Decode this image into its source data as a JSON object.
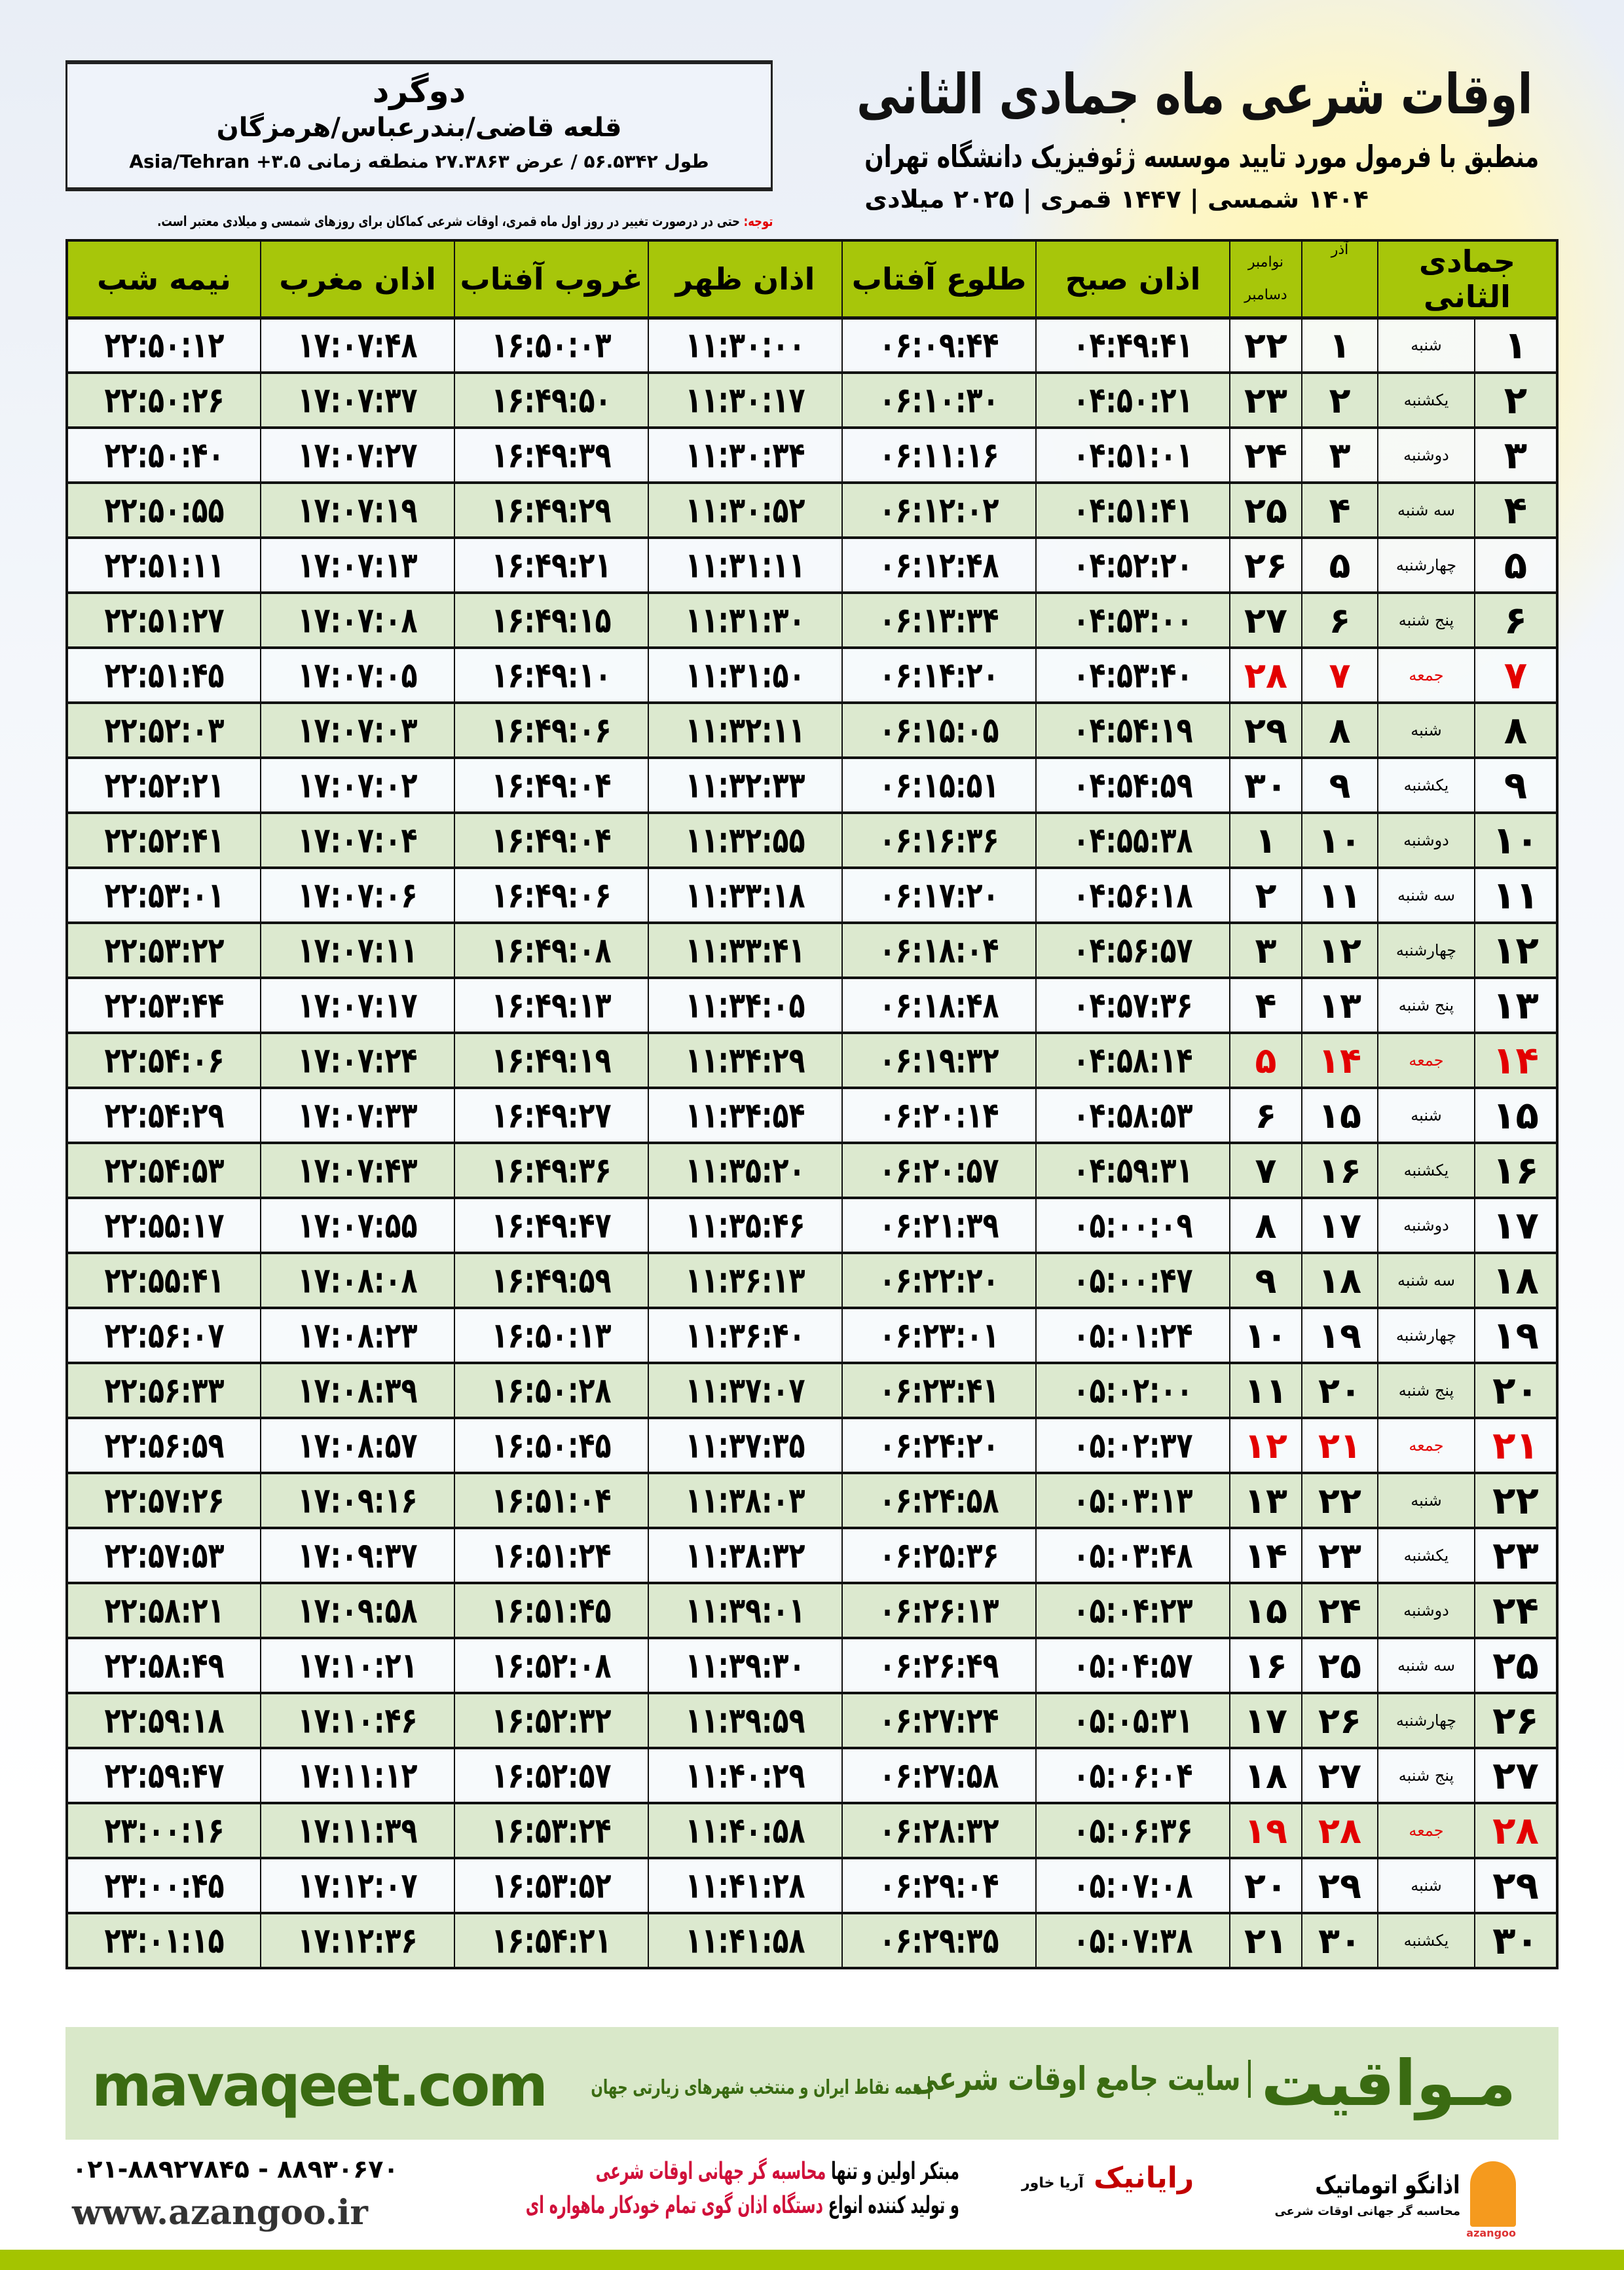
{
  "location": {
    "city": "دوگرد",
    "province": "قلعه قاضی/بندرعباس/هرمزگان",
    "geo": "طول ۵۶.۵۳۴۲ / عرض ۲۷.۳۸۶۳ منطقه زمانی ۳.۵+ Asia/Tehran"
  },
  "header": {
    "title": "اوقات شرعی ماه جمادی الثانی",
    "subtitle": "منطبق با فرمول مورد تایید موسسه ژئوفیزیک دانشگاه تهران",
    "years": "۱۴۰۴ شمسی | ۱۴۴۷ قمری | ۲۰۲۵ میلادی",
    "note_label": "توجه:",
    "note_text": " حتی در درصورت تغییر در روز اول ماه قمری، اوقات شرعی کماکان برای روزهای شمسی و میلادی معتبر است."
  },
  "colors": {
    "header_green": "#a7c60a",
    "row_alt": "#dce9cf",
    "friday_red": "#e30000",
    "banner_bg": "#d9e8c9",
    "brand_green": "#3a6b12"
  },
  "table": {
    "headers": {
      "hijri": "جمادی الثانی",
      "azar": "آذر",
      "greg_top": "نوامبر",
      "greg_bottom": "دسامبر",
      "fajr": "اذان صبح",
      "sunrise": "طلوع آفتاب",
      "dhuhr": "اذان ظهر",
      "sunset": "غروب آفتاب",
      "maghrib": "اذان مغرب",
      "midnight": "نیمه شب"
    },
    "rows": [
      [
        "۱",
        "شنبه",
        "۱",
        "۲۲",
        "۰۴:۴۹:۴۱",
        "۰۶:۰۹:۴۴",
        "۱۱:۳۰:۰۰",
        "۱۶:۵۰:۰۳",
        "۱۷:۰۷:۴۸",
        "۲۲:۵۰:۱۲"
      ],
      [
        "۲",
        "یکشنبه",
        "۲",
        "۲۳",
        "۰۴:۵۰:۲۱",
        "۰۶:۱۰:۳۰",
        "۱۱:۳۰:۱۷",
        "۱۶:۴۹:۵۰",
        "۱۷:۰۷:۳۷",
        "۲۲:۵۰:۲۶"
      ],
      [
        "۳",
        "دوشنبه",
        "۳",
        "۲۴",
        "۰۴:۵۱:۰۱",
        "۰۶:۱۱:۱۶",
        "۱۱:۳۰:۳۴",
        "۱۶:۴۹:۳۹",
        "۱۷:۰۷:۲۷",
        "۲۲:۵۰:۴۰"
      ],
      [
        "۴",
        "سه شنبه",
        "۴",
        "۲۵",
        "۰۴:۵۱:۴۱",
        "۰۶:۱۲:۰۲",
        "۱۱:۳۰:۵۲",
        "۱۶:۴۹:۲۹",
        "۱۷:۰۷:۱۹",
        "۲۲:۵۰:۵۵"
      ],
      [
        "۵",
        "چهارشنبه",
        "۵",
        "۲۶",
        "۰۴:۵۲:۲۰",
        "۰۶:۱۲:۴۸",
        "۱۱:۳۱:۱۱",
        "۱۶:۴۹:۲۱",
        "۱۷:۰۷:۱۳",
        "۲۲:۵۱:۱۱"
      ],
      [
        "۶",
        "پنج شنبه",
        "۶",
        "۲۷",
        "۰۴:۵۳:۰۰",
        "۰۶:۱۳:۳۴",
        "۱۱:۳۱:۳۰",
        "۱۶:۴۹:۱۵",
        "۱۷:۰۷:۰۸",
        "۲۲:۵۱:۲۷"
      ],
      [
        "۷",
        "جمعه",
        "۷",
        "۲۸",
        "۰۴:۵۳:۴۰",
        "۰۶:۱۴:۲۰",
        "۱۱:۳۱:۵۰",
        "۱۶:۴۹:۱۰",
        "۱۷:۰۷:۰۵",
        "۲۲:۵۱:۴۵"
      ],
      [
        "۸",
        "شنبه",
        "۸",
        "۲۹",
        "۰۴:۵۴:۱۹",
        "۰۶:۱۵:۰۵",
        "۱۱:۳۲:۱۱",
        "۱۶:۴۹:۰۶",
        "۱۷:۰۷:۰۳",
        "۲۲:۵۲:۰۳"
      ],
      [
        "۹",
        "یکشنبه",
        "۹",
        "۳۰",
        "۰۴:۵۴:۵۹",
        "۰۶:۱۵:۵۱",
        "۱۱:۳۲:۳۳",
        "۱۶:۴۹:۰۴",
        "۱۷:۰۷:۰۲",
        "۲۲:۵۲:۲۱"
      ],
      [
        "۱۰",
        "دوشنبه",
        "۱۰",
        "۱",
        "۰۴:۵۵:۳۸",
        "۰۶:۱۶:۳۶",
        "۱۱:۳۲:۵۵",
        "۱۶:۴۹:۰۴",
        "۱۷:۰۷:۰۴",
        "۲۲:۵۲:۴۱"
      ],
      [
        "۱۱",
        "سه شنبه",
        "۱۱",
        "۲",
        "۰۴:۵۶:۱۸",
        "۰۶:۱۷:۲۰",
        "۱۱:۳۳:۱۸",
        "۱۶:۴۹:۰۶",
        "۱۷:۰۷:۰۶",
        "۲۲:۵۳:۰۱"
      ],
      [
        "۱۲",
        "چهارشنبه",
        "۱۲",
        "۳",
        "۰۴:۵۶:۵۷",
        "۰۶:۱۸:۰۴",
        "۱۱:۳۳:۴۱",
        "۱۶:۴۹:۰۸",
        "۱۷:۰۷:۱۱",
        "۲۲:۵۳:۲۲"
      ],
      [
        "۱۳",
        "پنج شنبه",
        "۱۳",
        "۴",
        "۰۴:۵۷:۳۶",
        "۰۶:۱۸:۴۸",
        "۱۱:۳۴:۰۵",
        "۱۶:۴۹:۱۳",
        "۱۷:۰۷:۱۷",
        "۲۲:۵۳:۴۴"
      ],
      [
        "۱۴",
        "جمعه",
        "۱۴",
        "۵",
        "۰۴:۵۸:۱۴",
        "۰۶:۱۹:۳۲",
        "۱۱:۳۴:۲۹",
        "۱۶:۴۹:۱۹",
        "۱۷:۰۷:۲۴",
        "۲۲:۵۴:۰۶"
      ],
      [
        "۱۵",
        "شنبه",
        "۱۵",
        "۶",
        "۰۴:۵۸:۵۳",
        "۰۶:۲۰:۱۴",
        "۱۱:۳۴:۵۴",
        "۱۶:۴۹:۲۷",
        "۱۷:۰۷:۳۳",
        "۲۲:۵۴:۲۹"
      ],
      [
        "۱۶",
        "یکشنبه",
        "۱۶",
        "۷",
        "۰۴:۵۹:۳۱",
        "۰۶:۲۰:۵۷",
        "۱۱:۳۵:۲۰",
        "۱۶:۴۹:۳۶",
        "۱۷:۰۷:۴۳",
        "۲۲:۵۴:۵۳"
      ],
      [
        "۱۷",
        "دوشنبه",
        "۱۷",
        "۸",
        "۰۵:۰۰:۰۹",
        "۰۶:۲۱:۳۹",
        "۱۱:۳۵:۴۶",
        "۱۶:۴۹:۴۷",
        "۱۷:۰۷:۵۵",
        "۲۲:۵۵:۱۷"
      ],
      [
        "۱۸",
        "سه شنبه",
        "۱۸",
        "۹",
        "۰۵:۰۰:۴۷",
        "۰۶:۲۲:۲۰",
        "۱۱:۳۶:۱۳",
        "۱۶:۴۹:۵۹",
        "۱۷:۰۸:۰۸",
        "۲۲:۵۵:۴۱"
      ],
      [
        "۱۹",
        "چهارشنبه",
        "۱۹",
        "۱۰",
        "۰۵:۰۱:۲۴",
        "۰۶:۲۳:۰۱",
        "۱۱:۳۶:۴۰",
        "۱۶:۵۰:۱۳",
        "۱۷:۰۸:۲۳",
        "۲۲:۵۶:۰۷"
      ],
      [
        "۲۰",
        "پنج شنبه",
        "۲۰",
        "۱۱",
        "۰۵:۰۲:۰۰",
        "۰۶:۲۳:۴۱",
        "۱۱:۳۷:۰۷",
        "۱۶:۵۰:۲۸",
        "۱۷:۰۸:۳۹",
        "۲۲:۵۶:۳۳"
      ],
      [
        "۲۱",
        "جمعه",
        "۲۱",
        "۱۲",
        "۰۵:۰۲:۳۷",
        "۰۶:۲۴:۲۰",
        "۱۱:۳۷:۳۵",
        "۱۶:۵۰:۴۵",
        "۱۷:۰۸:۵۷",
        "۲۲:۵۶:۵۹"
      ],
      [
        "۲۲",
        "شنبه",
        "۲۲",
        "۱۳",
        "۰۵:۰۳:۱۳",
        "۰۶:۲۴:۵۸",
        "۱۱:۳۸:۰۳",
        "۱۶:۵۱:۰۴",
        "۱۷:۰۹:۱۶",
        "۲۲:۵۷:۲۶"
      ],
      [
        "۲۳",
        "یکشنبه",
        "۲۳",
        "۱۴",
        "۰۵:۰۳:۴۸",
        "۰۶:۲۵:۳۶",
        "۱۱:۳۸:۳۲",
        "۱۶:۵۱:۲۴",
        "۱۷:۰۹:۳۷",
        "۲۲:۵۷:۵۳"
      ],
      [
        "۲۴",
        "دوشنبه",
        "۲۴",
        "۱۵",
        "۰۵:۰۴:۲۳",
        "۰۶:۲۶:۱۳",
        "۱۱:۳۹:۰۱",
        "۱۶:۵۱:۴۵",
        "۱۷:۰۹:۵۸",
        "۲۲:۵۸:۲۱"
      ],
      [
        "۲۵",
        "سه شنبه",
        "۲۵",
        "۱۶",
        "۰۵:۰۴:۵۷",
        "۰۶:۲۶:۴۹",
        "۱۱:۳۹:۳۰",
        "۱۶:۵۲:۰۸",
        "۱۷:۱۰:۲۱",
        "۲۲:۵۸:۴۹"
      ],
      [
        "۲۶",
        "چهارشنبه",
        "۲۶",
        "۱۷",
        "۰۵:۰۵:۳۱",
        "۰۶:۲۷:۲۴",
        "۱۱:۳۹:۵۹",
        "۱۶:۵۲:۳۲",
        "۱۷:۱۰:۴۶",
        "۲۲:۵۹:۱۸"
      ],
      [
        "۲۷",
        "پنج شنبه",
        "۲۷",
        "۱۸",
        "۰۵:۰۶:۰۴",
        "۰۶:۲۷:۵۸",
        "۱۱:۴۰:۲۹",
        "۱۶:۵۲:۵۷",
        "۱۷:۱۱:۱۲",
        "۲۲:۵۹:۴۷"
      ],
      [
        "۲۸",
        "جمعه",
        "۲۸",
        "۱۹",
        "۰۵:۰۶:۳۶",
        "۰۶:۲۸:۳۲",
        "۱۱:۴۰:۵۸",
        "۱۶:۵۳:۲۴",
        "۱۷:۱۱:۳۹",
        "۲۳:۰۰:۱۶"
      ],
      [
        "۲۹",
        "شنبه",
        "۲۹",
        "۲۰",
        "۰۵:۰۷:۰۸",
        "۰۶:۲۹:۰۴",
        "۱۱:۴۱:۲۸",
        "۱۶:۵۳:۵۲",
        "۱۷:۱۲:۰۷",
        "۲۳:۰۰:۴۵"
      ],
      [
        "۳۰",
        "یکشنبه",
        "۳۰",
        "۲۱",
        "۰۵:۰۷:۳۸",
        "۰۶:۲۹:۳۵",
        "۱۱:۴۱:۵۸",
        "۱۶:۵۴:۲۱",
        "۱۷:۱۲:۳۶",
        "۲۳:۰۱:۱۵"
      ]
    ],
    "friday_label": "جمعه"
  },
  "banner": {
    "brand": "مـواقیت",
    "tagline": "سایت جامع اوقات شرعی",
    "tagline2": "همه نقاط ایران و منتخب شهرهای زیارتی جهان",
    "url": "mavaqeet.com"
  },
  "footer": {
    "line1_a": "مبتکر اولین و تنها ",
    "line1_b": "محاسبه گر جهانی اوقات شرعی",
    "line2_a": "و تولید کننده انواع ",
    "line2_b": "دستگاه اذان گوی تمام خودکار ماهواره ای",
    "phone": "۰۲۱-۸۸۹۲۷۸۴۵ - ۸۸۹۳۰۶۷۰",
    "website": "www.azangoo.ir",
    "logo_raianik": "رایانیک",
    "logo_raianik_sub": "آریا خاور",
    "logo_azangoo": "اذانگو اتوماتیک",
    "logo_azangoo_sub": "محاسبه گر جهانی اوقات شرعی",
    "logo_azangoo_en": "azangoo"
  }
}
